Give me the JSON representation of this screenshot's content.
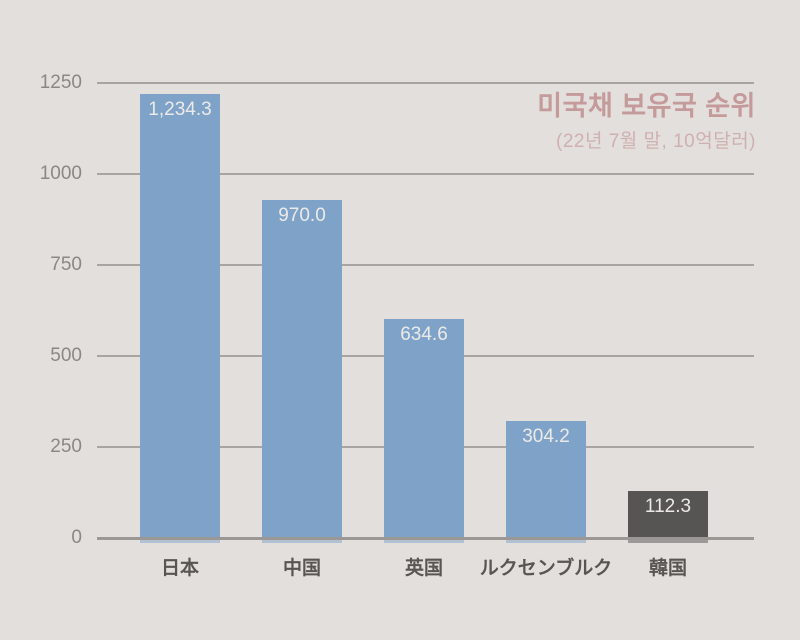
{
  "chart_data": {
    "type": "bar",
    "title": "미국채 보유국 순위",
    "subtitle": "(22년 7월 말, 10억달러)",
    "categories": [
      "日本",
      "中国",
      "英国",
      "ルクセンブルク",
      "韓国"
    ],
    "values": [
      1234.3,
      970.0,
      634.6,
      304.2,
      112.3
    ],
    "value_labels": [
      "1,234.3",
      "970.0",
      "634.6",
      "304.2",
      "112.3"
    ],
    "highlight_index": 4,
    "ylim": [
      0,
      1250
    ],
    "ytick_values": [
      0,
      250,
      500,
      750,
      1000,
      1250
    ],
    "ytick_labels": [
      "0",
      "250",
      "500",
      "750",
      "1000",
      "1250"
    ],
    "grid": true,
    "legend": false,
    "colors": {
      "bar": "#7fa3c8",
      "bar_highlight": "#575454",
      "background": "#e3dfdc",
      "gridline": "#a7a4a1",
      "axis_line": "#9a9795",
      "tick_label": "#8a8785",
      "category_label": "#585552",
      "value_label": "#eceae7",
      "title": "#c49a9b",
      "subtitle": "#cfb0b0"
    }
  }
}
